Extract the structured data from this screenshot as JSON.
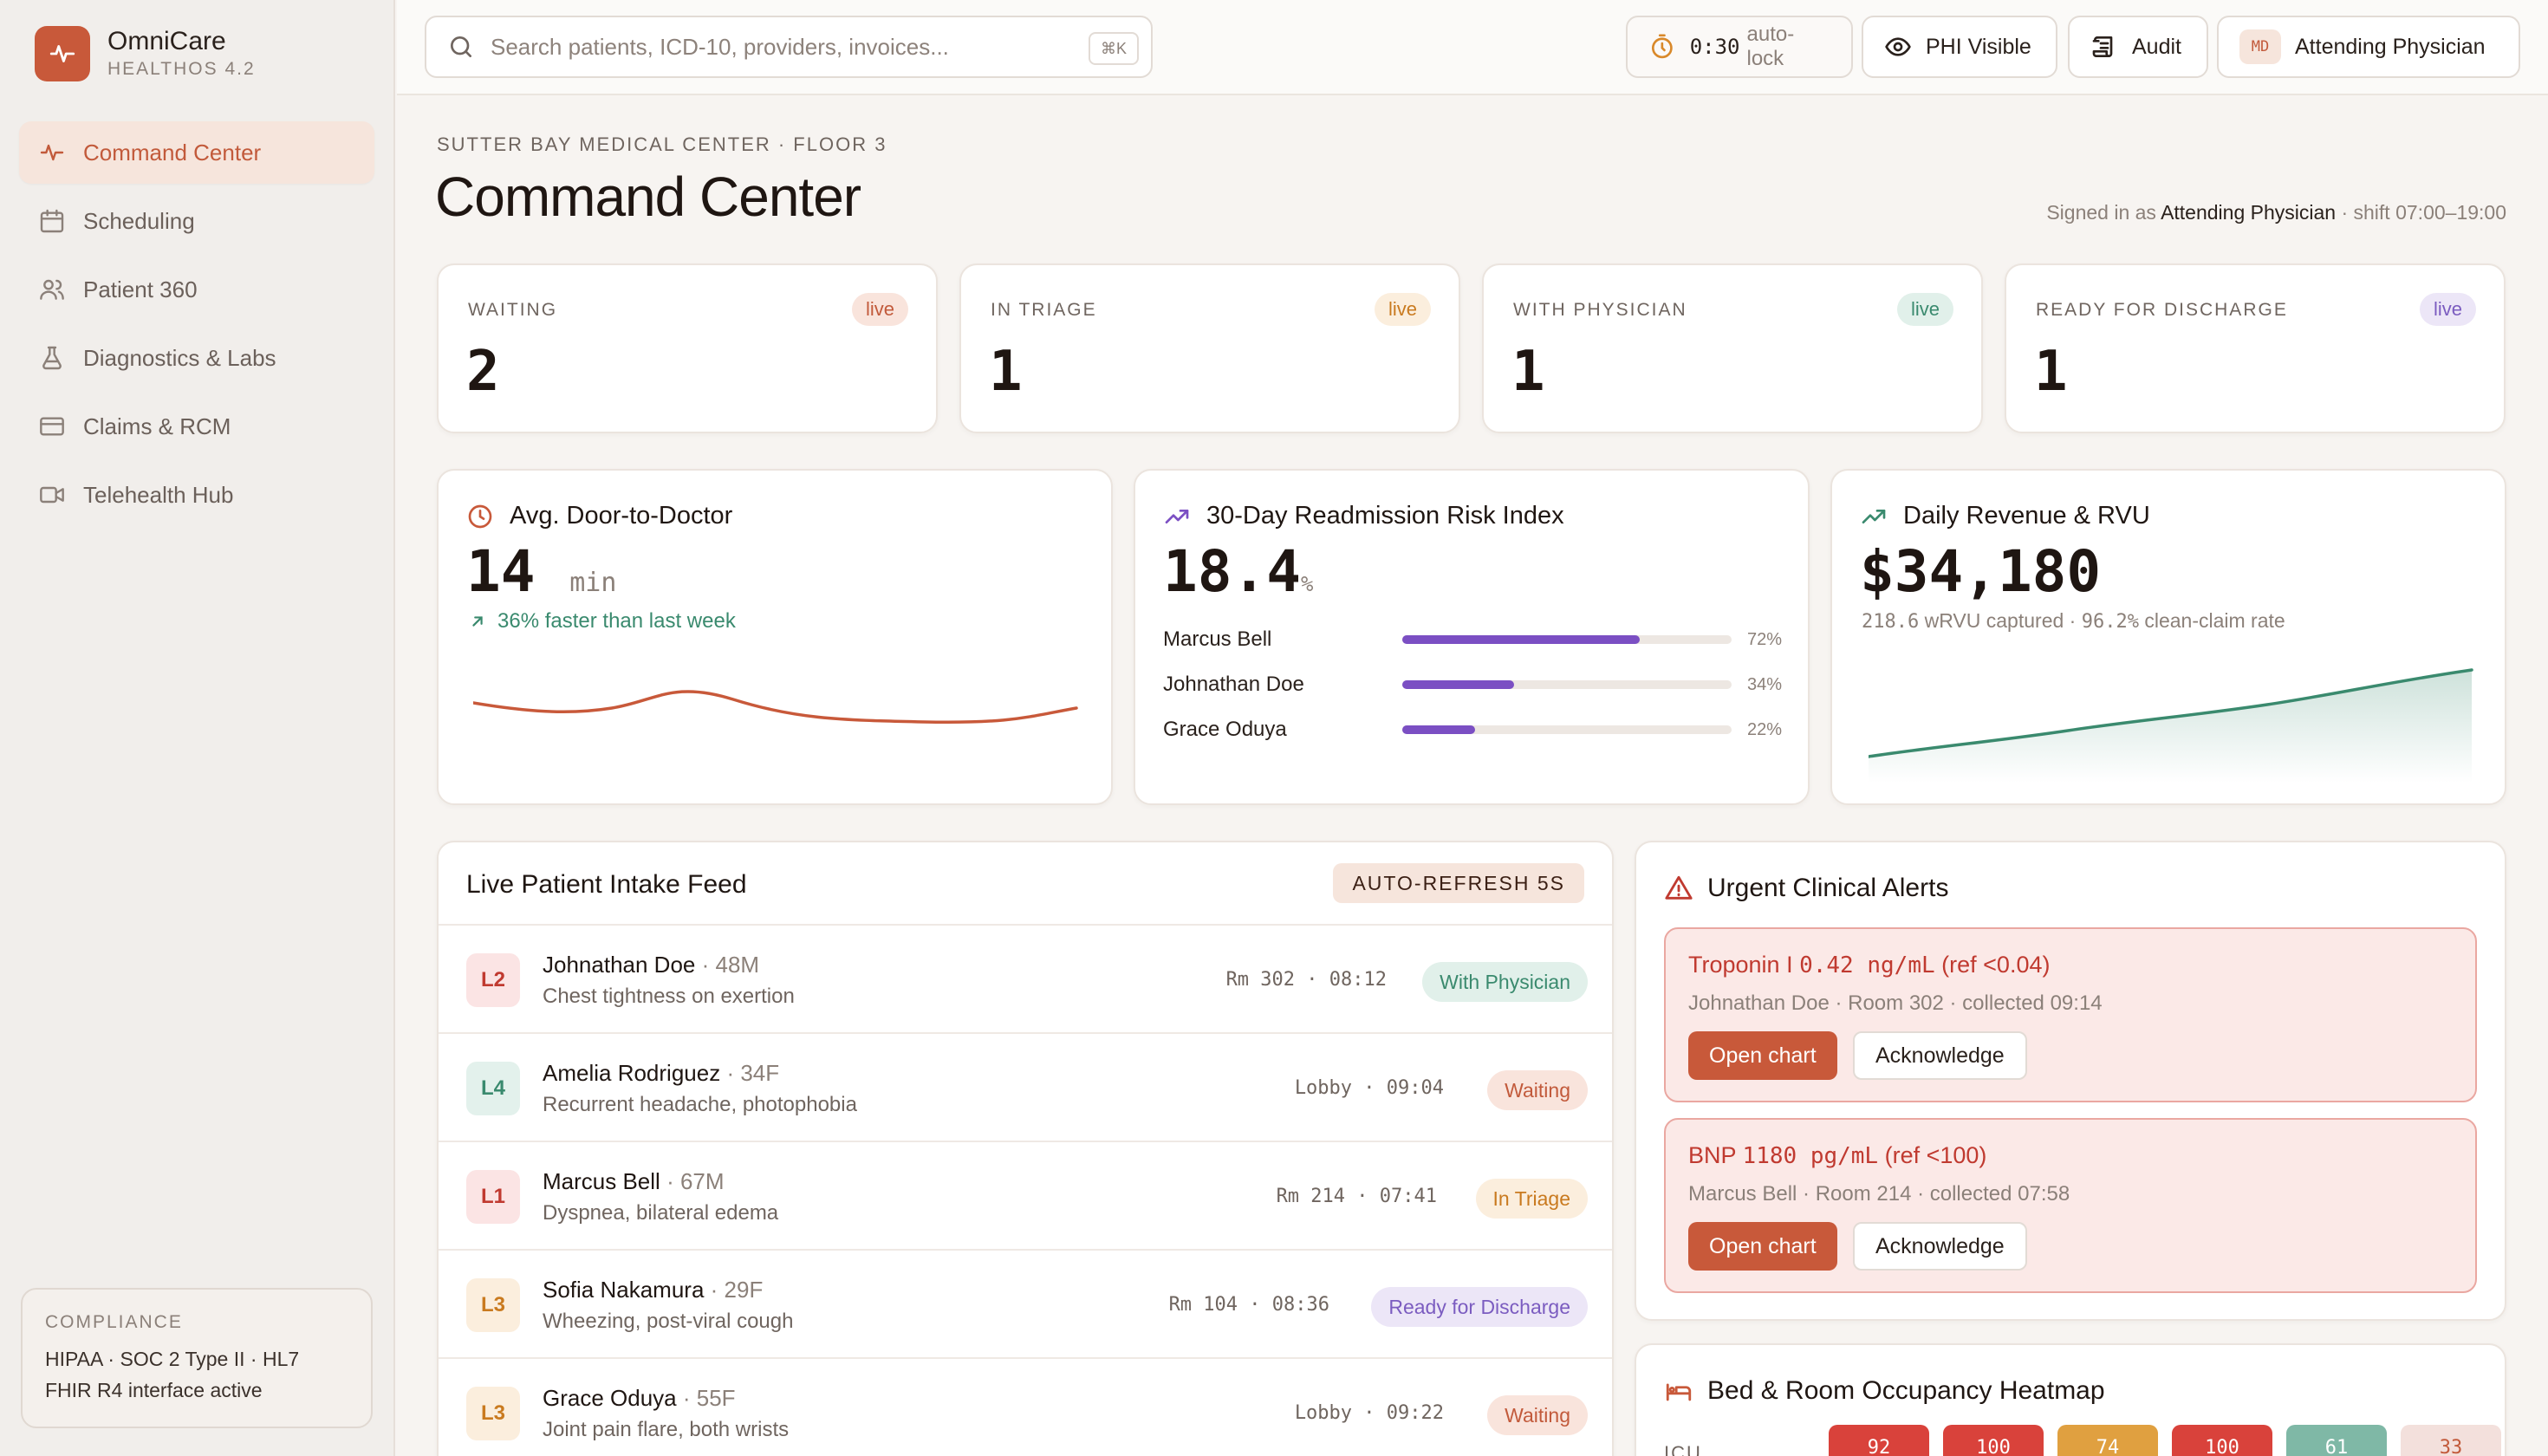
{
  "brand": {
    "name": "OmniCare",
    "sub": "HEALTHOS 4.2"
  },
  "nav": [
    {
      "label": "Command Center",
      "icon": "activity-icon"
    },
    {
      "label": "Scheduling",
      "icon": "calendar-icon"
    },
    {
      "label": "Patient 360",
      "icon": "users-icon"
    },
    {
      "label": "Diagnostics & Labs",
      "icon": "flask-icon"
    },
    {
      "label": "Claims & RCM",
      "icon": "credit-card-icon"
    },
    {
      "label": "Telehealth Hub",
      "icon": "video-icon"
    }
  ],
  "compliance": {
    "title": "COMPLIANCE",
    "line1": "HIPAA · SOC 2 Type II · HL7",
    "line2": "FHIR R4 interface active"
  },
  "topbar": {
    "search_placeholder": "Search patients, ICD-10, providers, invoices...",
    "search_kbd": "⌘K",
    "autolock_time": "0:30",
    "autolock_label": "auto-lock",
    "phi_label": "PHI Visible",
    "audit_label": "Audit",
    "role_badge": "MD",
    "role_label": "Attending Physician"
  },
  "header": {
    "breadcrumb": "SUTTER BAY MEDICAL CENTER · FLOOR 3",
    "title": "Command Center",
    "signed_prefix": "Signed in as",
    "signed_role": "Attending Physician",
    "signed_suffix": "· shift 07:00–19:00"
  },
  "stats": [
    {
      "label": "WAITING",
      "value": "2",
      "pill": "live",
      "pill_bg": "#f9e4dc",
      "pill_fg": "#c25a3b"
    },
    {
      "label": "IN TRIAGE",
      "value": "1",
      "pill": "live",
      "pill_bg": "#fbeedd",
      "pill_fg": "#c97a1f"
    },
    {
      "label": "WITH PHYSICIAN",
      "value": "1",
      "pill": "live",
      "pill_bg": "#e1f0ea",
      "pill_fg": "#3a8a6e"
    },
    {
      "label": "READY FOR DISCHARGE",
      "value": "1",
      "pill": "live",
      "pill_bg": "#ece6f7",
      "pill_fg": "#7b5cc0"
    }
  ],
  "door_to_doctor": {
    "title": "Avg. Door-to-Doctor",
    "value": "14",
    "unit": "min",
    "trend": "36% faster than last week"
  },
  "readmission": {
    "title": "30-Day Readmission Risk Index",
    "value": "18.4",
    "unit": "%",
    "rows": [
      {
        "name": "Marcus Bell",
        "pct": "72%",
        "value": 72
      },
      {
        "name": "Johnathan Doe",
        "pct": "34%",
        "value": 34
      },
      {
        "name": "Grace Oduya",
        "pct": "22%",
        "value": 22
      }
    ]
  },
  "revenue": {
    "title": "Daily Revenue & RVU",
    "value": "$34,180",
    "wrvu": "218.6",
    "wrvu_label": "wRVU captured ·",
    "clean": "96.2%",
    "clean_label": "clean-claim rate"
  },
  "feed": {
    "title": "Live Patient Intake Feed",
    "autorefresh": "AUTO-REFRESH 5S",
    "rows": [
      {
        "level": "L2",
        "name": "Johnathan Doe",
        "meta": "· 48M",
        "cc": "Chest tightness on exertion",
        "loc": "Rm 302 · 08:12",
        "status": "With Physician",
        "lvl_bg": "#fbe4e4",
        "lvl_fg": "#c03a30",
        "st_bg": "#e1f0ea",
        "st_fg": "#3a8a6e"
      },
      {
        "level": "L4",
        "name": "Amelia Rodriguez",
        "meta": "· 34F",
        "cc": "Recurrent headache, photophobia",
        "loc": "Lobby · 09:04",
        "status": "Waiting",
        "lvl_bg": "#e3f1ec",
        "lvl_fg": "#3a8a6e",
        "st_bg": "#f9e4dc",
        "st_fg": "#c25a3b"
      },
      {
        "level": "L1",
        "name": "Marcus Bell",
        "meta": "· 67M",
        "cc": "Dyspnea, bilateral edema",
        "loc": "Rm 214 · 07:41",
        "status": "In Triage",
        "lvl_bg": "#fbe4e4",
        "lvl_fg": "#c03a30",
        "st_bg": "#fbeedd",
        "st_fg": "#c97a1f"
      },
      {
        "level": "L3",
        "name": "Sofia Nakamura",
        "meta": "· 29F",
        "cc": "Wheezing, post-viral cough",
        "loc": "Rm 104 · 08:36",
        "status": "Ready for Discharge",
        "lvl_bg": "#fbeedd",
        "lvl_fg": "#c97a1f",
        "st_bg": "#ece6f7",
        "st_fg": "#7b5cc0"
      },
      {
        "level": "L3",
        "name": "Grace Oduya",
        "meta": "· 55F",
        "cc": "Joint pain flare, both wrists",
        "loc": "Lobby · 09:22",
        "status": "Waiting",
        "lvl_bg": "#fbeedd",
        "lvl_fg": "#c97a1f",
        "st_bg": "#f9e4dc",
        "st_fg": "#c25a3b"
      }
    ]
  },
  "alerts": {
    "title": "Urgent Clinical Alerts",
    "items": [
      {
        "test": "Troponin I",
        "value": "0.42 ng/mL",
        "ref": "(ref <0.04)",
        "sub": "Johnathan Doe · Room 302 · collected 09:14",
        "open": "Open chart",
        "ack": "Acknowledge"
      },
      {
        "test": "BNP",
        "value": "1180 pg/mL",
        "ref": "(ref <100)",
        "sub": "Marcus Bell · Room 214 · collected 07:58",
        "open": "Open chart",
        "ack": "Acknowledge"
      }
    ]
  },
  "heatmap": {
    "title": "Bed & Room Occupancy Heatmap",
    "row_label": "ICU",
    "cells": [
      {
        "value": "92",
        "color": "#d9423b"
      },
      {
        "value": "100",
        "color": "#d9423b"
      },
      {
        "value": "74",
        "color": "#e0a040"
      },
      {
        "value": "100",
        "color": "#d9423b"
      },
      {
        "value": "61",
        "color": "#7fb8a6"
      },
      {
        "value": "33",
        "color": "#f3e0dc"
      }
    ]
  },
  "colors": {
    "accent": "#c8593a",
    "green": "#3a8a6e",
    "purple": "#7b4fc3"
  }
}
